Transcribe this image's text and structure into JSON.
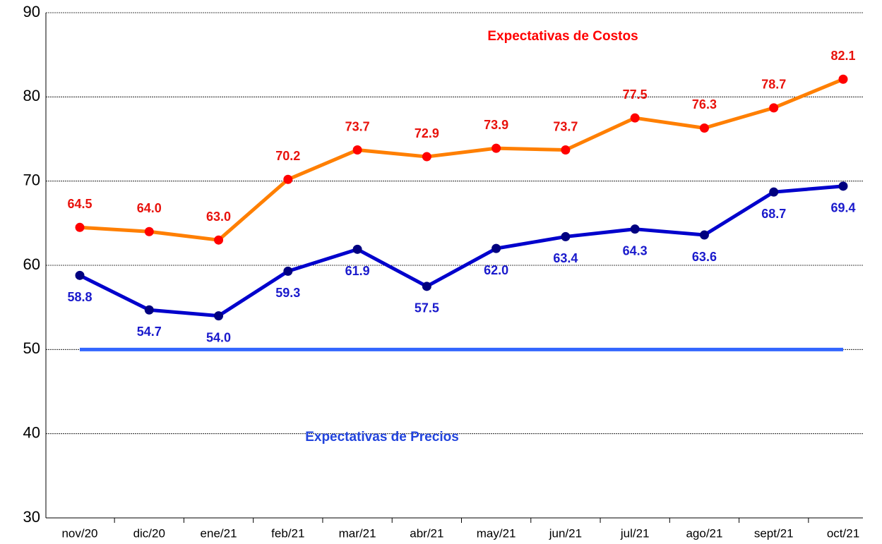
{
  "chart_data": {
    "type": "line",
    "categories": [
      "nov/20",
      "dic/20",
      "ene/21",
      "feb/21",
      "mar/21",
      "abr/21",
      "may/21",
      "jun/21",
      "jul/21",
      "ago/21",
      "sept/21",
      "oct/21"
    ],
    "series": [
      {
        "name": "Expectativas de Costos",
        "color": "#ff7f00",
        "marker_color": "#ff0000",
        "label_color": "#e8120c",
        "values": [
          64.5,
          64.0,
          63.0,
          70.2,
          73.7,
          72.9,
          73.9,
          73.7,
          77.5,
          76.3,
          78.7,
          82.1
        ],
        "value_labels": [
          "64.5",
          "64.0",
          "63.0",
          "70.2",
          "73.7",
          "72.9",
          "73.9",
          "73.7",
          "77.5",
          "76.3",
          "78.7",
          "82.1"
        ]
      },
      {
        "name": "Expectativas de Precios",
        "color": "#0000cc",
        "marker_color": "#000080",
        "label_color": "#1a1acc",
        "values": [
          58.8,
          54.7,
          54.0,
          59.3,
          61.9,
          57.5,
          62.0,
          63.4,
          64.3,
          63.6,
          68.7,
          69.4
        ],
        "value_labels": [
          "58.8",
          "54.7",
          "54.0",
          "59.3",
          "61.9",
          "57.5",
          "62.0",
          "63.4",
          "64.3",
          "63.6",
          "68.7",
          "69.4"
        ]
      }
    ],
    "reference_line": {
      "value": 50,
      "color": "#3366ff"
    },
    "ylim": [
      30,
      90
    ],
    "yticks": [
      30,
      40,
      50,
      60,
      70,
      80,
      90
    ],
    "grid": true
  }
}
